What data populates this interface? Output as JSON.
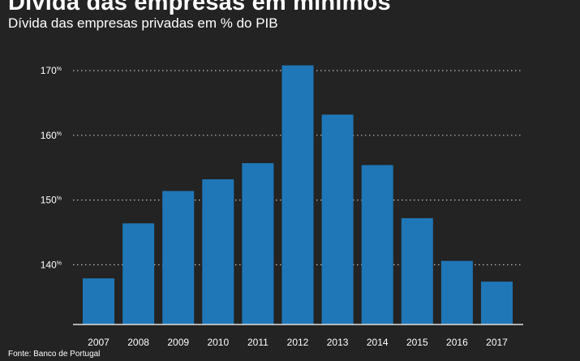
{
  "chart_data": {
    "type": "bar",
    "title": "Dívida das empresas em mínimos",
    "subtitle": "Dívida das empresas privadas em % do PIB",
    "source": "Fonte: Banco de Portugal",
    "categories": [
      "2007",
      "2008",
      "2009",
      "2010",
      "2011",
      "2012",
      "2013",
      "2014",
      "2015",
      "2016",
      "2017"
    ],
    "values": [
      137.9,
      146.4,
      151.4,
      153.2,
      155.7,
      170.8,
      163.2,
      155.4,
      147.2,
      140.6,
      137.4
    ],
    "yticks": [
      140,
      150,
      160,
      170
    ],
    "ytick_suffix": "%",
    "ylim": [
      128.6,
      172
    ],
    "grid": true,
    "xlabel": "",
    "ylabel": "",
    "colors": {
      "bar": "#1f77b8",
      "grid": "#bdbdbd",
      "axis": "#e0e0e0",
      "background": "#232323"
    }
  }
}
